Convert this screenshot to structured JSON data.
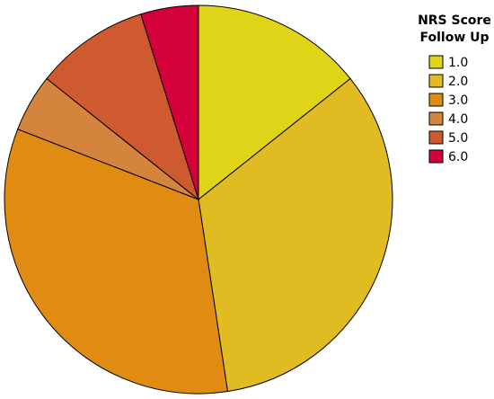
{
  "chart_data": {
    "type": "pie",
    "legend_title": [
      "NRS Score",
      "Follow Up"
    ],
    "categories": [
      "1.0",
      "2.0",
      "3.0",
      "4.0",
      "5.0",
      "6.0"
    ],
    "values": [
      14.3,
      33.3,
      33.3,
      4.8,
      9.5,
      4.8
    ],
    "colors": [
      "#e0d418",
      "#e1bb22",
      "#e08b12",
      "#d4843c",
      "#d05a30",
      "#d4003a"
    ],
    "legend": "upper right"
  }
}
